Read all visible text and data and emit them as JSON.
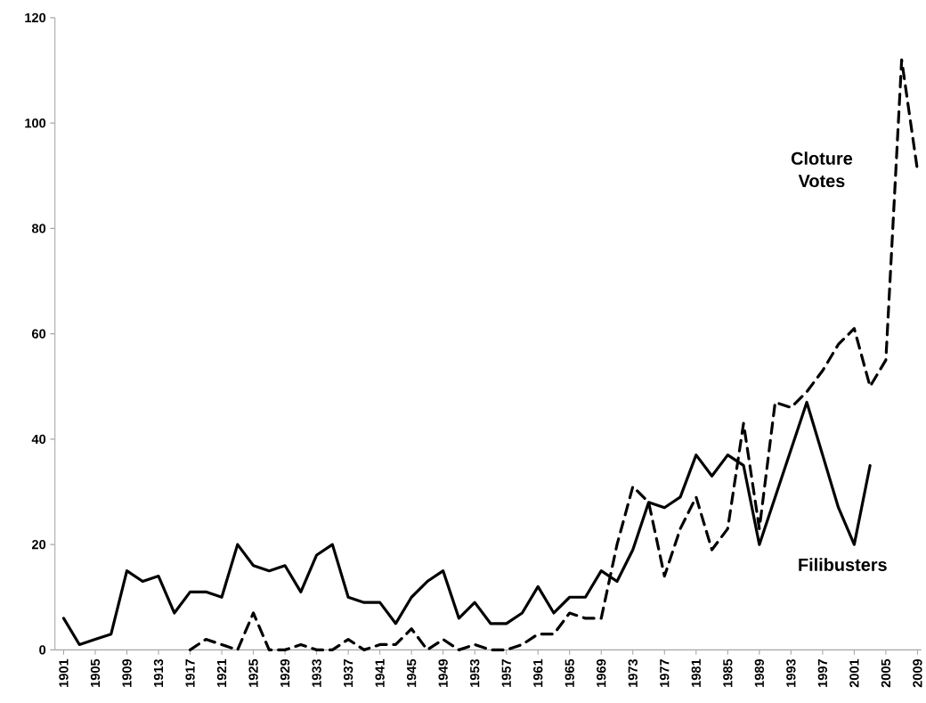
{
  "chart_data": {
    "type": "line",
    "categories": [
      "1901",
      null,
      "1905",
      null,
      "1909",
      null,
      "1913",
      null,
      "1917",
      null,
      "1921",
      null,
      "1925",
      null,
      "1929",
      null,
      "1933",
      null,
      "1937",
      null,
      "1941",
      null,
      "1945",
      null,
      "1949",
      null,
      "1953",
      null,
      "1957",
      null,
      "1961",
      null,
      "1965",
      null,
      "1969",
      null,
      "1973",
      null,
      "1977",
      null,
      "1981",
      null,
      "1985",
      null,
      "1989",
      null,
      "1993",
      null,
      "1997",
      null,
      "2001",
      null,
      "2005",
      null,
      "2009"
    ],
    "series": [
      {
        "color": "#000000",
        "line_style": "solid",
        "values": [
          6,
          1,
          2,
          3,
          15,
          13,
          14,
          7,
          11,
          11,
          10,
          20,
          16,
          15,
          16,
          11,
          18,
          20,
          10,
          9,
          9,
          5,
          10,
          13,
          15,
          6,
          9,
          5,
          5,
          7,
          12,
          7,
          10,
          10,
          15,
          13,
          19,
          28,
          27,
          29,
          37,
          33,
          37,
          35,
          20,
          29,
          38,
          47,
          37,
          27,
          20,
          35,
          null,
          null,
          null
        ]
      },
      {
        "color": "#000000",
        "line_style": "dashed",
        "values": [
          null,
          null,
          null,
          null,
          null,
          null,
          null,
          null,
          0,
          2,
          1,
          0,
          7,
          0,
          0,
          1,
          0,
          0,
          2,
          0,
          1,
          1,
          4,
          0,
          2,
          0,
          1,
          0,
          0,
          1,
          3,
          3,
          7,
          6,
          6,
          20,
          31,
          28,
          14,
          23,
          29,
          19,
          23,
          43,
          23,
          47,
          46,
          49,
          53,
          58,
          61,
          50,
          55,
          112,
          91
        ]
      }
    ],
    "ylim": [
      0,
      120
    ],
    "yticks": [
      0,
      20,
      40,
      60,
      80,
      100,
      120
    ],
    "grid": false,
    "annotations": [
      "Cloture Votes",
      "Filibusters"
    ]
  }
}
